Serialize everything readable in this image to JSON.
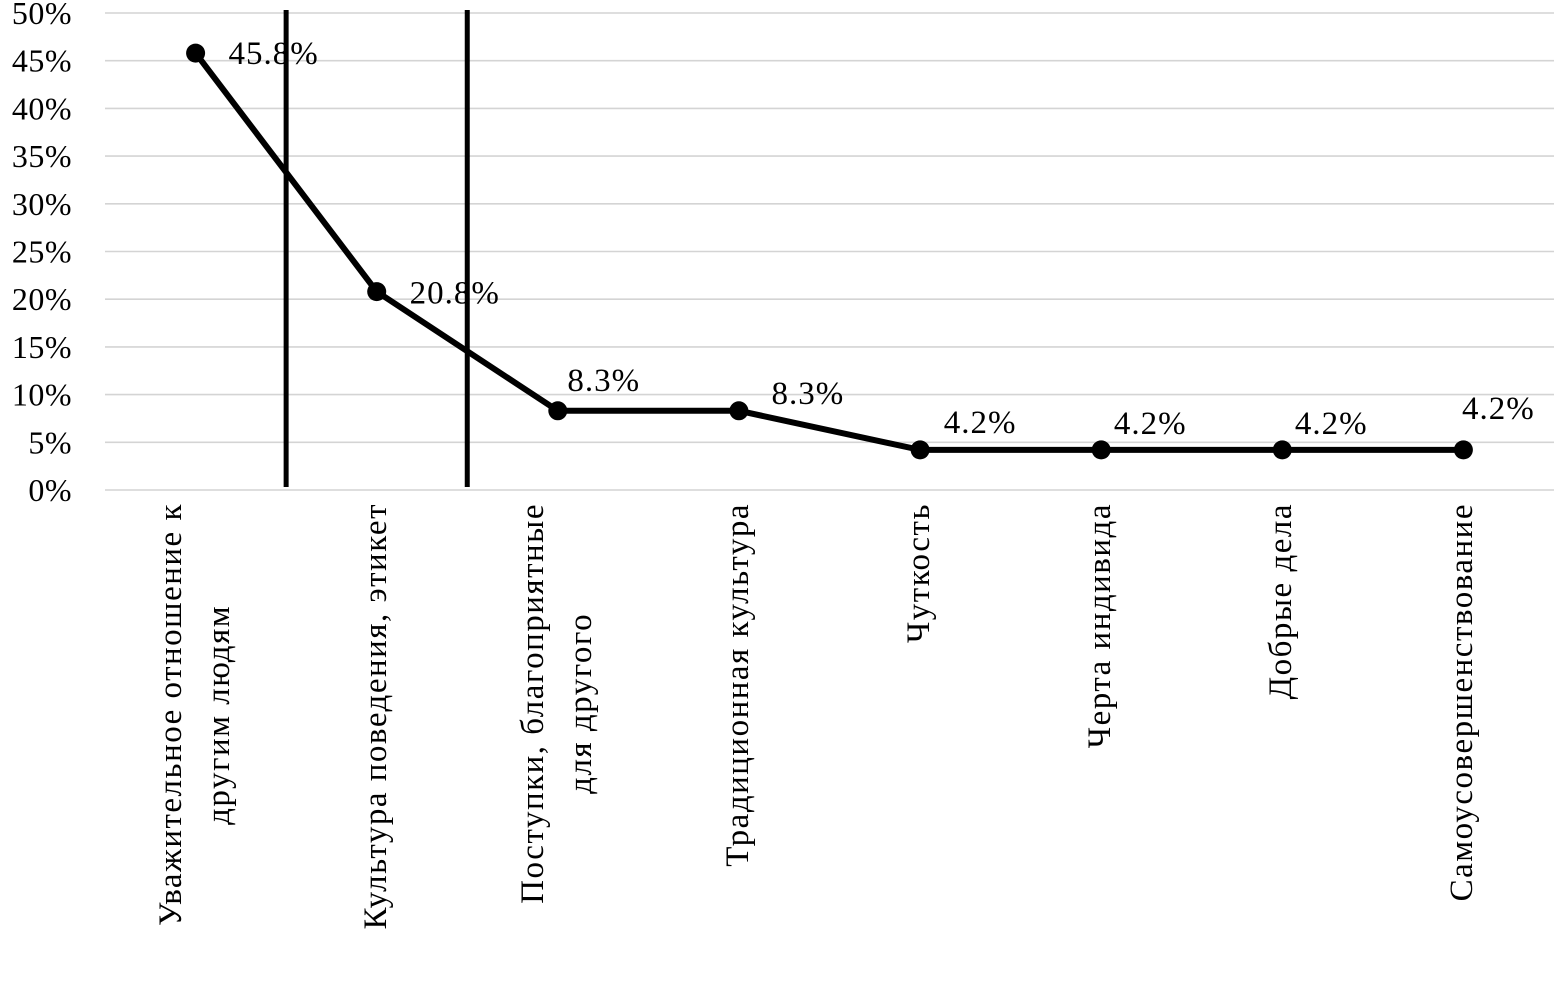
{
  "chart_data": {
    "type": "line",
    "title": "",
    "legend": false,
    "grid": true,
    "categories": [
      "Уважительное отношение к\nдругим людям",
      "Культура поведения, этикет",
      "Поступки, благоприятные\nдля другого",
      "Традиционная культура",
      "Чуткость",
      "Черта индивида",
      "Добрые дела",
      "Самоусовершенствование"
    ],
    "values": [
      45.8,
      20.8,
      8.3,
      8.3,
      4.2,
      4.2,
      4.2,
      4.2
    ],
    "value_labels": [
      "45.8%",
      "20.8%",
      "8.3%",
      "8.3%",
      "4.2%",
      "4.2%",
      "4.2%",
      "4.2%"
    ],
    "y_axis": {
      "min": 0,
      "max": 50,
      "step": 5,
      "tick_labels": [
        "0%",
        "5%",
        "10%",
        "15%",
        "20%",
        "25%",
        "30%",
        "35%",
        "40%",
        "45%",
        "50%"
      ]
    },
    "separator_lines_after_category": [
      1,
      2
    ],
    "colors": {
      "line": "#000000",
      "marker": "#000000",
      "separator": "#000000",
      "gridline": "#d4d4d4",
      "text": "#000000",
      "background": "#ffffff"
    }
  }
}
